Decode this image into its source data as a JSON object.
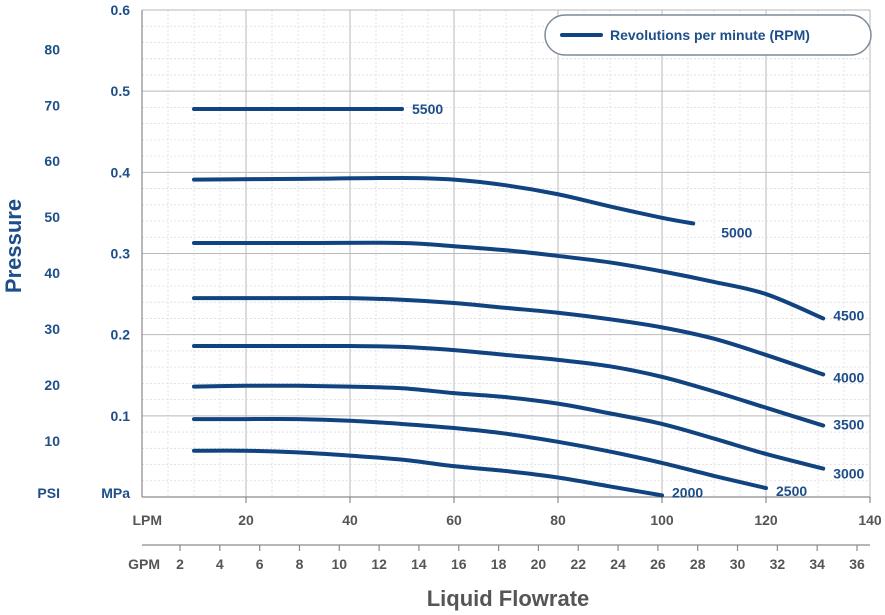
{
  "chart_data": {
    "type": "line",
    "xlabel": "Liquid Flowrate",
    "ylabel": "Pressure",
    "x_unit_primary": "LPM",
    "x_unit_secondary": "GPM",
    "y_unit_left": "PSI",
    "y_unit_right": "MPa",
    "xlim": [
      0,
      140
    ],
    "ylim": [
      0,
      0.6
    ],
    "x_ticks": [
      20,
      40,
      60,
      80,
      100,
      120,
      140
    ],
    "gpm_ticks": [
      2,
      4,
      6,
      8,
      10,
      12,
      14,
      16,
      18,
      20,
      22,
      24,
      26,
      28,
      30,
      32,
      34,
      36
    ],
    "mpa_ticks": [
      0.1,
      0.2,
      0.3,
      0.4,
      0.5,
      0.6
    ],
    "psi_ticks": [
      10,
      20,
      30,
      40,
      50,
      60,
      70,
      80
    ],
    "grid": true,
    "legend": {
      "label": "Revolutions per minute (RPM)",
      "position": "top-right"
    },
    "series": [
      {
        "name": "5500",
        "x": [
          10,
          50
        ],
        "y": [
          0.478,
          0.478
        ]
      },
      {
        "name": "5000",
        "x": [
          10,
          30,
          50,
          60,
          70,
          80,
          90,
          100,
          106
        ],
        "y": [
          0.391,
          0.392,
          0.393,
          0.391,
          0.384,
          0.373,
          0.358,
          0.344,
          0.337
        ]
      },
      {
        "name": "4500",
        "x": [
          10,
          30,
          50,
          60,
          70,
          80,
          90,
          100,
          110,
          120,
          131
        ],
        "y": [
          0.313,
          0.313,
          0.313,
          0.309,
          0.304,
          0.297,
          0.289,
          0.278,
          0.265,
          0.25,
          0.22
        ]
      },
      {
        "name": "4000",
        "x": [
          10,
          30,
          40,
          50,
          60,
          70,
          80,
          90,
          100,
          110,
          120,
          131
        ],
        "y": [
          0.245,
          0.245,
          0.245,
          0.243,
          0.239,
          0.233,
          0.227,
          0.219,
          0.209,
          0.195,
          0.175,
          0.151
        ]
      },
      {
        "name": "3500",
        "x": [
          10,
          30,
          40,
          50,
          60,
          70,
          80,
          90,
          100,
          110,
          120,
          131
        ],
        "y": [
          0.186,
          0.186,
          0.186,
          0.185,
          0.181,
          0.175,
          0.169,
          0.161,
          0.148,
          0.13,
          0.11,
          0.088
        ]
      },
      {
        "name": "3000",
        "x": [
          10,
          20,
          30,
          40,
          50,
          60,
          70,
          80,
          90,
          100,
          110,
          120,
          131
        ],
        "y": [
          0.136,
          0.137,
          0.137,
          0.136,
          0.134,
          0.128,
          0.123,
          0.115,
          0.103,
          0.09,
          0.072,
          0.053,
          0.035
        ]
      },
      {
        "name": "2500",
        "x": [
          10,
          20,
          30,
          40,
          50,
          60,
          70,
          80,
          90,
          100,
          110,
          120
        ],
        "y": [
          0.096,
          0.096,
          0.096,
          0.094,
          0.09,
          0.085,
          0.078,
          0.068,
          0.056,
          0.042,
          0.026,
          0.011
        ]
      },
      {
        "name": "2000",
        "x": [
          10,
          20,
          30,
          40,
          50,
          60,
          70,
          80,
          90,
          100
        ],
        "y": [
          0.057,
          0.057,
          0.055,
          0.051,
          0.046,
          0.038,
          0.032,
          0.024,
          0.013,
          0.002
        ]
      }
    ],
    "annotations": [
      "5500",
      "5000",
      "4500",
      "4000",
      "3500",
      "3000",
      "2500",
      "2000"
    ]
  },
  "colors": {
    "curve": "#10437f",
    "label": "#1d4e89",
    "axis_text_gray": "#555555",
    "grid": "#b9b9b9"
  }
}
